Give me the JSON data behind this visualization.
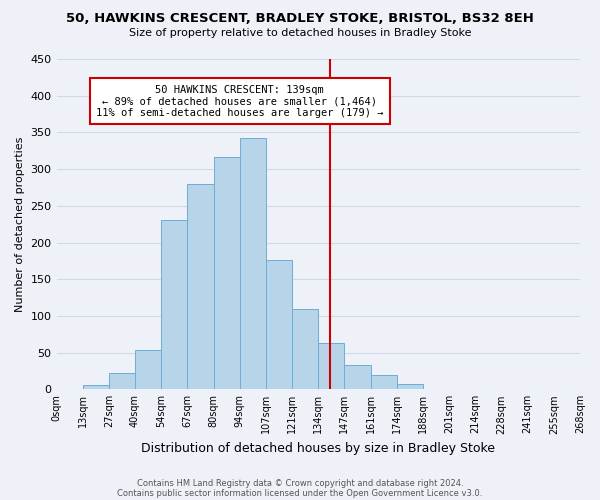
{
  "title": "50, HAWKINS CRESCENT, BRADLEY STOKE, BRISTOL, BS32 8EH",
  "subtitle": "Size of property relative to detached houses in Bradley Stoke",
  "xlabel": "Distribution of detached houses by size in Bradley Stoke",
  "ylabel": "Number of detached properties",
  "footnote1": "Contains HM Land Registry data © Crown copyright and database right 2024.",
  "footnote2": "Contains public sector information licensed under the Open Government Licence v3.0.",
  "bin_labels": [
    "0sqm",
    "13sqm",
    "27sqm",
    "40sqm",
    "54sqm",
    "67sqm",
    "80sqm",
    "94sqm",
    "107sqm",
    "121sqm",
    "134sqm",
    "147sqm",
    "161sqm",
    "174sqm",
    "188sqm",
    "201sqm",
    "214sqm",
    "228sqm",
    "241sqm",
    "255sqm",
    "268sqm"
  ],
  "bin_edges_numeric": [
    0,
    1,
    2,
    3,
    4,
    5,
    6,
    7,
    8,
    9,
    10,
    11,
    12,
    13,
    14,
    15,
    16,
    17,
    18,
    19,
    20
  ],
  "counts": [
    0,
    6,
    22,
    54,
    230,
    280,
    316,
    343,
    176,
    109,
    63,
    33,
    19,
    7,
    0,
    0,
    0,
    0,
    0,
    0
  ],
  "bar_color": "#b8d4e8",
  "bar_edge_color": "#6aaed6",
  "vline_bin": 10.46,
  "vline_color": "#cc0000",
  "annotation_title": "50 HAWKINS CRESCENT: 139sqm",
  "annotation_line1": "← 89% of detached houses are smaller (1,464)",
  "annotation_line2": "11% of semi-detached houses are larger (179) →",
  "annotation_box_color": "#ffffff",
  "annotation_box_edge": "#cc0000",
  "ylim": [
    0,
    450
  ],
  "background_color": "#eef2f8",
  "grid_color": "#d0d8e8"
}
